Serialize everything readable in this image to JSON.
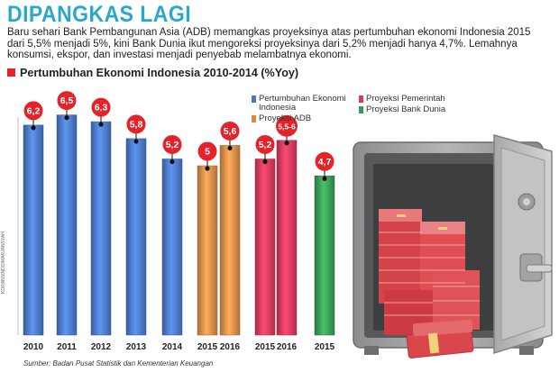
{
  "header": {
    "title": "DIPANGKAS LAGI",
    "lead": "Baru sehari Bank Pembangunan Asia (ADB) memangkas proyeksinya atas pertumbuhan ekonomi Indonesia 2015 dari 5,5% menjadi 5%, kini Bank Dunia ikut mengoreksi proyeksinya dari 5,2% menjadi hanya 4,7%. Lemahnya konsumsi, ekspor, dan investasi menjadi penyebab melambatnya ekonomi.",
    "subtitle": "Pertumbuhan Ekonomi Indonesia 2010-2014 (%Yoy)"
  },
  "credit": "KORANSINDO/MARJANSYAH",
  "source": "Sumber: Badan Pusat Statistik dan Kementerian Keuangan",
  "icons": {
    "illustration": "safe-with-money-illustration"
  },
  "chart_data": {
    "type": "bar",
    "title": "Pertumbuhan Ekonomi Indonesia 2010-2014 (%Yoy)",
    "ylim": [
      0,
      7
    ],
    "grid": false,
    "legend_position": "top-right",
    "series": [
      {
        "name": "Pertumbuhan Ekonomi Indonesia",
        "color": "#4a78c4",
        "points": [
          {
            "x": "2010",
            "y": 6.2,
            "label": "6,2"
          },
          {
            "x": "2011",
            "y": 6.5,
            "label": "6,5"
          },
          {
            "x": "2012",
            "y": 6.3,
            "label": "6,3"
          },
          {
            "x": "2013",
            "y": 5.8,
            "label": "5,8"
          },
          {
            "x": "2014",
            "y": 5.2,
            "label": "5,2"
          }
        ]
      },
      {
        "name": "Proyeksi ADB",
        "color": "#d98a48",
        "points": [
          {
            "x": "2015",
            "y": 5.0,
            "label": "5"
          },
          {
            "x": "2016",
            "y": 5.6,
            "label": "5,6"
          }
        ]
      },
      {
        "name": "Proyeksi Pemerintah",
        "color": "#d63a5c",
        "points": [
          {
            "x": "2015",
            "y": 5.2,
            "label": "5,2"
          },
          {
            "x": "2016",
            "y": 5.75,
            "label": "5,5-6"
          }
        ]
      },
      {
        "name": "Proyeksi Bank Dunia",
        "color": "#3a9a55",
        "points": [
          {
            "x": "2015",
            "y": 4.7,
            "label": "4,7"
          }
        ]
      }
    ]
  }
}
